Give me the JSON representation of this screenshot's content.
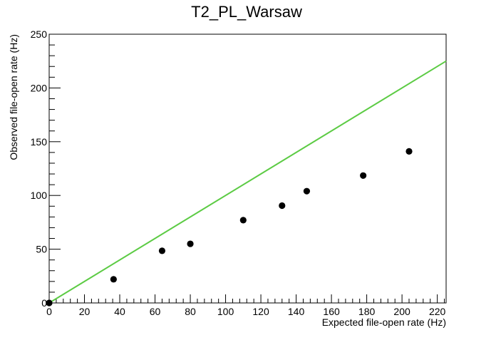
{
  "chart_data": {
    "type": "scatter",
    "title": "T2_PL_Warsaw",
    "xlabel": "Expected file-open rate (Hz)",
    "ylabel": "Observed file-open rate (Hz)",
    "xlim": [
      0,
      225
    ],
    "ylim": [
      0,
      250
    ],
    "x_ticks": [
      0,
      20,
      40,
      60,
      80,
      100,
      120,
      140,
      160,
      180,
      200,
      220
    ],
    "y_ticks": [
      0,
      50,
      100,
      150,
      200,
      250
    ],
    "grid": false,
    "legend": "none",
    "series": [
      {
        "marker": "filled-circle",
        "color": "#000000",
        "x": [
          0,
          36.5,
          64,
          80,
          110,
          132,
          146,
          178,
          204
        ],
        "y": [
          0,
          22,
          48.5,
          55,
          77,
          90.5,
          104,
          118.5,
          141
        ]
      }
    ],
    "reference_line": {
      "color": "#5ccb44",
      "x": [
        0,
        225
      ],
      "y": [
        0,
        225
      ]
    }
  }
}
